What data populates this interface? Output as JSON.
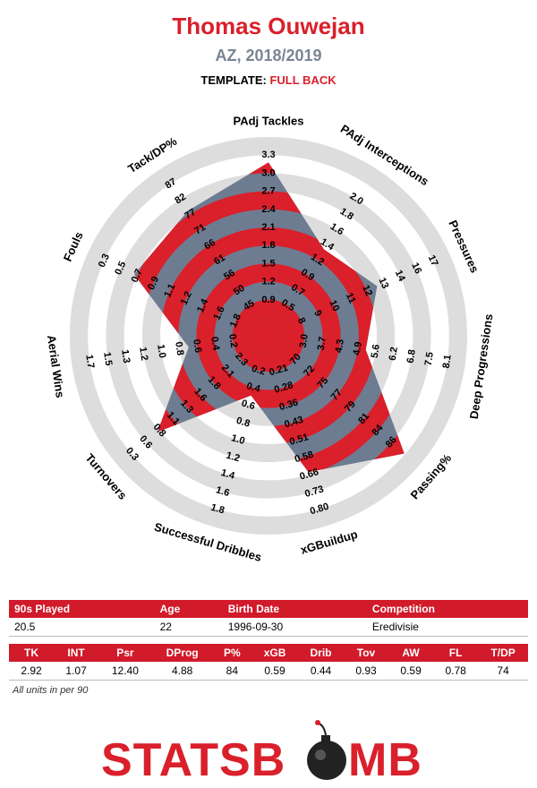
{
  "header": {
    "title": "Thomas Ouwejan",
    "subtitle": "AZ, 2018/2019",
    "template_label": "TEMPLATE:",
    "template_value": "FULL BACK"
  },
  "colors": {
    "red": "#d9202b",
    "slate": "#6e7c91",
    "ring": "#dddddd"
  },
  "chart_data": {
    "type": "radar",
    "grid": true,
    "rings": 10,
    "axes": [
      {
        "label": "PAdj Tackles",
        "ticks": [
          "0.9",
          "1.2",
          "1.5",
          "1.8",
          "2.1",
          "2.4",
          "2.7",
          "3.0",
          "3.3"
        ],
        "value": 2.92,
        "min": 0.6,
        "max": 3.3
      },
      {
        "label": "PAdj Interceptions",
        "ticks": [
          "0.5",
          "0.7",
          "0.9",
          "1.2",
          "1.4",
          "1.6",
          "1.8",
          "2.0"
        ],
        "value": 1.07,
        "min": 0.25,
        "max": 2.0
      },
      {
        "label": "Pressures",
        "ticks": [
          "8",
          "9",
          "10",
          "11",
          "12",
          "13",
          "14",
          "16",
          "17"
        ],
        "value": 12.4,
        "min": 6.5,
        "max": 17
      },
      {
        "label": "Deep Progressions",
        "ticks": [
          "3.0",
          "3.7",
          "4.3",
          "4.9",
          "5.6",
          "6.2",
          "6.8",
          "7.5",
          "8.1"
        ],
        "value": 4.88,
        "min": 2.3,
        "max": 8.1
      },
      {
        "label": "Passing%",
        "ticks": [
          "70",
          "72",
          "75",
          "77",
          "79",
          "81",
          "84",
          "86"
        ],
        "value": 84,
        "min": 67,
        "max": 86
      },
      {
        "label": "xGBuildup",
        "ticks": [
          "0.21",
          "0.28",
          "0.36",
          "0.43",
          "0.51",
          "0.58",
          "0.66",
          "0.73",
          "0.80"
        ],
        "value": 0.59,
        "min": 0.13,
        "max": 0.8
      },
      {
        "label": "Successful Dribbles",
        "ticks": [
          "0.2",
          "0.4",
          "0.6",
          "0.8",
          "1.0",
          "1.2",
          "1.4",
          "1.6",
          "1.8"
        ],
        "value": 0.44,
        "min": 0.0,
        "max": 1.8
      },
      {
        "label": "Turnovers",
        "ticks": [
          "2.3",
          "2.1",
          "1.8",
          "1.6",
          "1.3",
          "1.1",
          "0.8",
          "0.6",
          "0.3"
        ],
        "value": 0.93,
        "min": 2.5,
        "max": 0.3
      },
      {
        "label": "Aerial Wins",
        "ticks": [
          "0.2",
          "0.4",
          "0.6",
          "0.8",
          "1.0",
          "1.2",
          "1.3",
          "1.5",
          "1.7"
        ],
        "value": 0.59,
        "min": 0.0,
        "max": 1.7
      },
      {
        "label": "Fouls",
        "ticks": [
          "1.8",
          "1.6",
          "1.4",
          "1.2",
          "1.1",
          "0.9",
          "0.7",
          "0.5",
          "0.3"
        ],
        "value": 0.78,
        "min": 2.0,
        "max": 0.3
      },
      {
        "label": "Tack/DP%",
        "ticks": [
          "45",
          "50",
          "56",
          "61",
          "66",
          "71",
          "77",
          "82",
          "87"
        ],
        "value": 74,
        "min": 40,
        "max": 87
      }
    ]
  },
  "info_table": {
    "headers": [
      "90s Played",
      "Age",
      "Birth Date",
      "Competition"
    ],
    "values": [
      "20.5",
      "22",
      "1996-09-30",
      "Eredivisie"
    ]
  },
  "stats_table": {
    "headers": [
      "TK",
      "INT",
      "Psr",
      "DProg",
      "P%",
      "xGB",
      "Drib",
      "Tov",
      "AW",
      "FL",
      "T/DP"
    ],
    "values": [
      "2.92",
      "1.07",
      "12.40",
      "4.88",
      "84",
      "0.59",
      "0.44",
      "0.93",
      "0.59",
      "0.78",
      "74"
    ]
  },
  "footnote": "All units in per 90",
  "logo": {
    "text_left": "STATSB",
    "text_right": "MB"
  }
}
